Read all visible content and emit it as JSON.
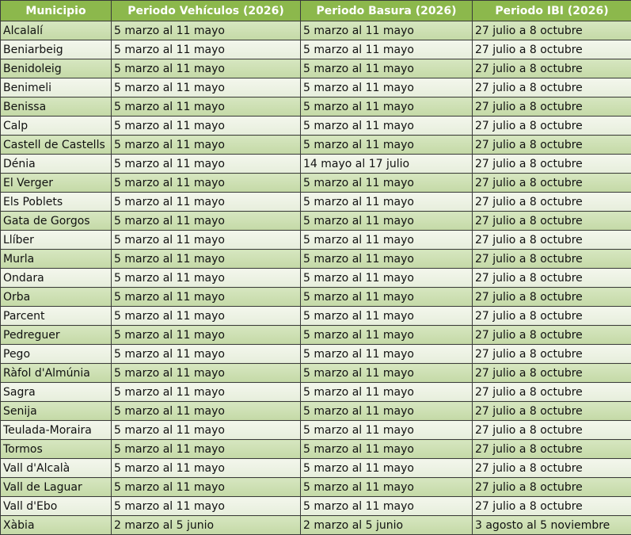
{
  "header": [
    "Municipio",
    "Periodo Vehículos (2026)",
    "Periodo Basura (2026)",
    "Periodo IBI  (2026)"
  ],
  "colors": {
    "header": "#8cb84c",
    "row_green": "#c9dcae",
    "row_light": "#edf2e4"
  },
  "rows": [
    [
      "Alcalalí",
      "5 marzo al 11 mayo",
      "5 marzo al 11 mayo",
      "27 julio a 8 octubre"
    ],
    [
      "Beniarbeig",
      "5 marzo al 11 mayo",
      "5 marzo al 11 mayo",
      "27 julio a 8 octubre"
    ],
    [
      "Benidoleig",
      "5 marzo al 11 mayo",
      "5 marzo al 11 mayo",
      "27 julio a 8 octubre"
    ],
    [
      "Benimeli",
      "5 marzo al 11 mayo",
      "5 marzo al 11 mayo",
      "27 julio a 8 octubre"
    ],
    [
      "Benissa",
      "5 marzo al 11 mayo",
      "5 marzo al 11 mayo",
      "27 julio a 8 octubre"
    ],
    [
      "Calp",
      "5 marzo al 11 mayo",
      "5 marzo al 11 mayo",
      "27 julio a 8 octubre"
    ],
    [
      "Castell de Castells",
      "5 marzo al 11 mayo",
      "5 marzo al 11 mayo",
      "27 julio a 8 octubre"
    ],
    [
      "Dénia",
      "5 marzo al 11 mayo",
      "14 mayo al 17 julio",
      "27 julio a 8 octubre"
    ],
    [
      "El Verger",
      "5 marzo al 11 mayo",
      "5 marzo al 11 mayo",
      "27 julio a 8 octubre"
    ],
    [
      "Els Poblets",
      "5 marzo al 11 mayo",
      "5 marzo al 11 mayo",
      "27 julio a 8 octubre"
    ],
    [
      "Gata de Gorgos",
      "5 marzo al 11 mayo",
      "5 marzo al 11 mayo",
      "27 julio a 8 octubre"
    ],
    [
      "Llíber",
      "5 marzo al 11 mayo",
      "5 marzo al 11 mayo",
      "27 julio a 8 octubre"
    ],
    [
      "Murla",
      "5 marzo al 11 mayo",
      "5 marzo al 11 mayo",
      "27 julio a 8 octubre"
    ],
    [
      "Ondara",
      "5 marzo al 11 mayo",
      "5 marzo al 11 mayo",
      "27 julio a 8 octubre"
    ],
    [
      "Orba",
      "5 marzo al 11 mayo",
      "5 marzo al 11 mayo",
      "27 julio a 8 octubre"
    ],
    [
      "Parcent",
      "5 marzo al 11 mayo",
      "5 marzo al 11 mayo",
      "27 julio a 8 octubre"
    ],
    [
      "Pedreguer",
      "5 marzo al 11 mayo",
      "5 marzo al 11 mayo",
      "27 julio a 8 octubre"
    ],
    [
      "Pego",
      "5 marzo al 11 mayo",
      "5 marzo al 11 mayo",
      "27 julio a 8 octubre"
    ],
    [
      "Ràfol d'Almúnia",
      "5 marzo al 11 mayo",
      "5 marzo al 11 mayo",
      "27 julio a 8 octubre"
    ],
    [
      "Sagra",
      "5 marzo al 11 mayo",
      "5 marzo al 11 mayo",
      "27 julio a 8 octubre"
    ],
    [
      "Senija",
      "5 marzo al 11 mayo",
      "5 marzo al 11 mayo",
      "27 julio a 8 octubre"
    ],
    [
      "Teulada-Moraira",
      "5 marzo al 11 mayo",
      "5 marzo al 11 mayo",
      "27 julio a 8 octubre"
    ],
    [
      "Tormos",
      "5 marzo al 11 mayo",
      "5 marzo al 11 mayo",
      "27 julio a 8 octubre"
    ],
    [
      "Vall d'Alcalà",
      "5 marzo al 11 mayo",
      "5 marzo al 11 mayo",
      "27 julio a 8 octubre"
    ],
    [
      "Vall de Laguar",
      "5 marzo al 11 mayo",
      "5 marzo al 11 mayo",
      "27 julio a 8 octubre"
    ],
    [
      "Vall d'Ebo",
      "5 marzo al 11 mayo",
      "5 marzo al 11 mayo",
      "27 julio a 8 octubre"
    ],
    [
      "Xàbia",
      "2 marzo al 5 junio",
      "2 marzo al 5 junio",
      "3 agosto al 5 noviembre"
    ]
  ]
}
